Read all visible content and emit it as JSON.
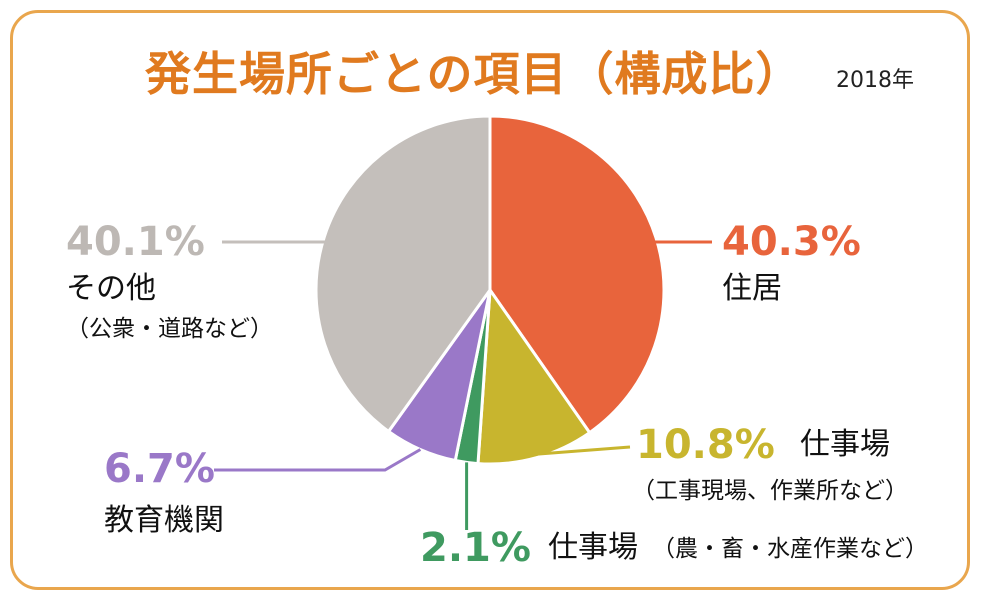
{
  "title": "発生場所ごとの項目（構成比）",
  "year": "2018年",
  "chart_data": {
    "type": "pie",
    "slices": [
      {
        "label": "住居",
        "sublabel": "",
        "value": 40.3,
        "pct_text": "40.3%",
        "color": "#e8643c"
      },
      {
        "label": "仕事場",
        "sublabel": "（工事現場、作業所など）",
        "value": 10.8,
        "pct_text": "10.8%",
        "color": "#c8b52e"
      },
      {
        "label": "仕事場",
        "sublabel": "（農・畜・水産作業など）",
        "value": 2.1,
        "pct_text": "2.1%",
        "color": "#3f9a60"
      },
      {
        "label": "教育機関",
        "sublabel": "",
        "value": 6.7,
        "pct_text": "6.7%",
        "color": "#9a78c8"
      },
      {
        "label": "その他",
        "sublabel": "（公衆・道路など）",
        "value": 40.1,
        "pct_text": "40.1%",
        "color": "#c4bfbb"
      }
    ]
  }
}
